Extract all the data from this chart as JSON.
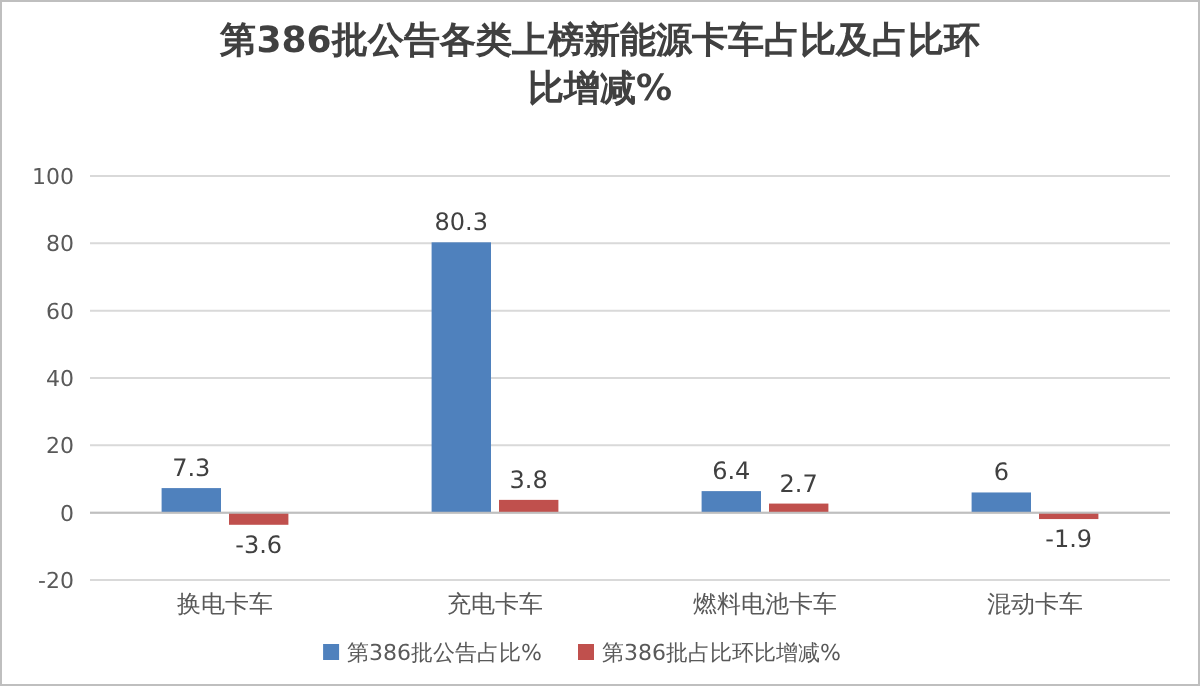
{
  "chart_data": {
    "type": "bar",
    "title": "第386批公告各类上榜新能源卡车占比及占比环比增减%",
    "categories": [
      "换电卡车",
      "充电卡车",
      "燃料电池卡车",
      "混动卡车"
    ],
    "series": [
      {
        "name": "第386批公告占比%",
        "color": "#4f81bd",
        "values": [
          7.3,
          80.3,
          6.4,
          6
        ]
      },
      {
        "name": "第386批占比环比增减%",
        "color": "#c0504d",
        "values": [
          -3.6,
          3.8,
          2.7,
          -1.9
        ]
      }
    ],
    "ylim": [
      -20,
      100
    ],
    "yticks": [
      -20,
      0,
      20,
      40,
      60,
      80,
      100
    ],
    "grid": "y",
    "legend": "bottom",
    "data_labels": true
  }
}
